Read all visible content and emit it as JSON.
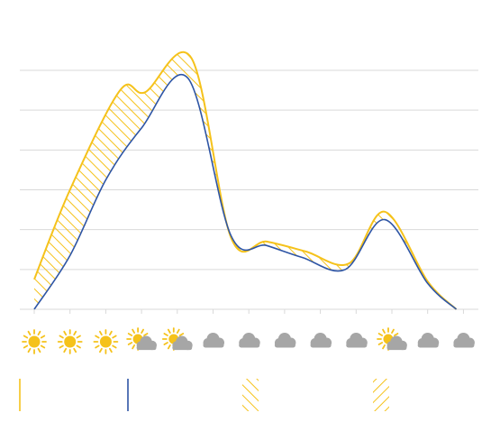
{
  "chart_data": {
    "type": "line",
    "title": "",
    "xlabel": "",
    "ylabel": "",
    "x": [
      0,
      1,
      2,
      3,
      4,
      5,
      6,
      7,
      8,
      9,
      10,
      11,
      12
    ],
    "ylim": [
      0,
      6
    ],
    "grid": true,
    "series": [
      {
        "values": [
          0,
          1.35,
          3.25,
          4.55,
          5.8,
          1.85,
          1.6,
          1.3,
          1.0,
          2.25,
          0.65,
          0.0
        ],
        "x": [
          0,
          1,
          2,
          3,
          4.3,
          5.5,
          6.5,
          7.5,
          8.7,
          9.8,
          11,
          11.8
        ],
        "color": "#2E55A5"
      },
      {
        "values": [
          0.75,
          3.0,
          5.5,
          5.45,
          6.3,
          1.8,
          1.7,
          1.45,
          1.15,
          2.45,
          0.7,
          0.0
        ],
        "x": [
          0,
          1,
          2.4,
          3.1,
          4.4,
          5.5,
          6.5,
          7.6,
          8.8,
          9.8,
          11,
          11.8
        ],
        "color": "#F5C21B"
      }
    ],
    "weather_icons": [
      "sun",
      "sun",
      "sun",
      "partly-cloudy",
      "partly-cloudy",
      "cloud",
      "cloud",
      "cloud",
      "cloud",
      "cloud",
      "partly-cloudy",
      "cloud",
      "cloud"
    ],
    "legend": [
      {
        "kind": "solid-line",
        "color": "#F5C21B"
      },
      {
        "kind": "solid-line",
        "color": "#2E55A5"
      },
      {
        "kind": "hatch",
        "color": "#F5C21B"
      },
      {
        "kind": "hatch-light",
        "color": "#F5C21B"
      }
    ],
    "colors": {
      "gold": "#F5C21B",
      "blue": "#2E55A5",
      "grid": "#D9D9D9",
      "cloud": "#A6A6A6"
    }
  }
}
